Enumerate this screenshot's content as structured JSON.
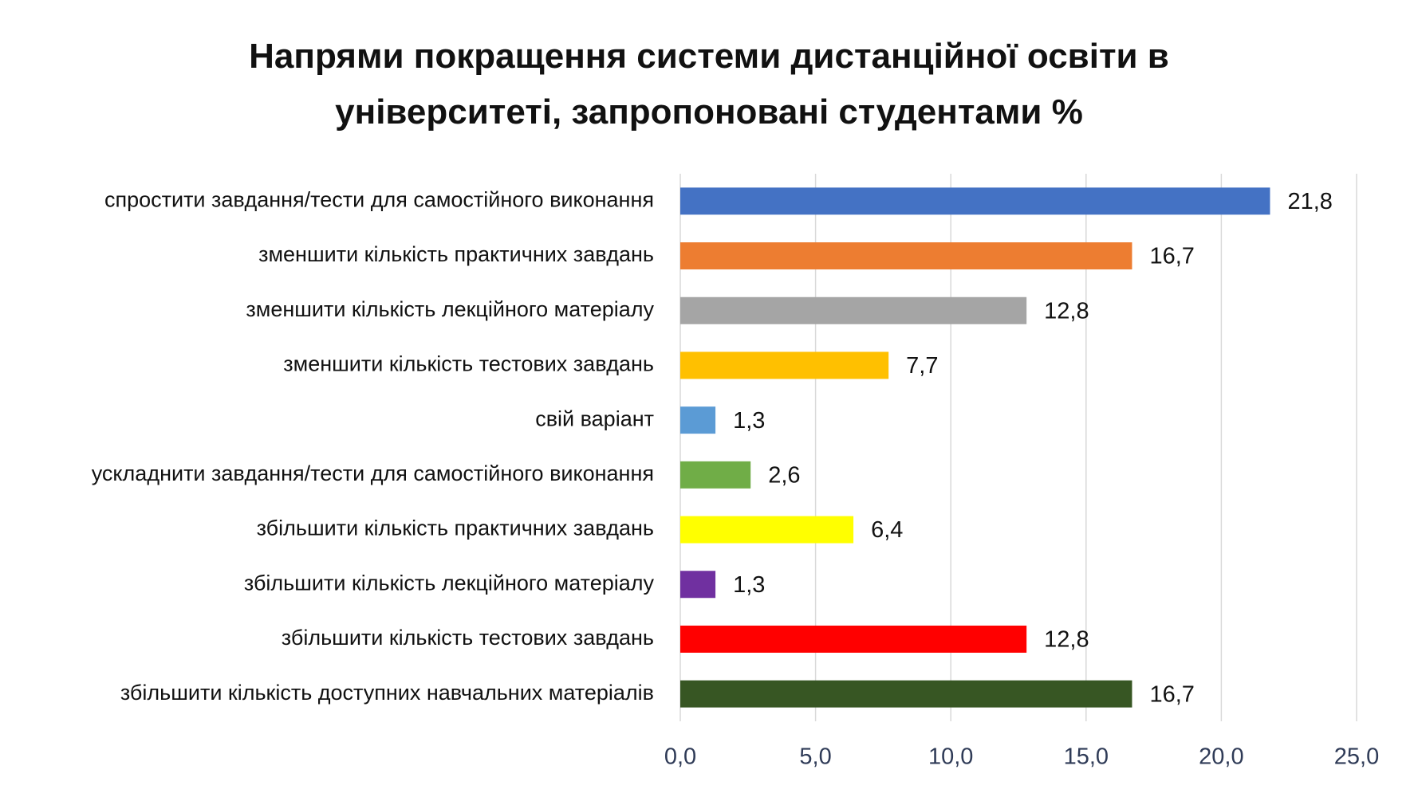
{
  "chart_data": {
    "type": "bar",
    "orientation": "horizontal",
    "title": "Напрями покращення системи дистанційної освіти в університеті, запропоновані студентами %",
    "categories": [
      "спростити завдання/тести для самостійного виконання",
      "зменшити кількість практичних завдань",
      "зменшити кількість лекційного матеріалу",
      "зменшити кількість тестових завдань",
      "свій варіант",
      "ускладнити завдання/тести для самостійного виконання",
      "збільшити кількість практичних завдань",
      "збільшити кількість лекційного матеріалу",
      "збільшити кількість тестових завдань",
      "збільшити кількість доступних навчальних матеріалів"
    ],
    "values": [
      21.8,
      16.7,
      12.8,
      7.7,
      1.3,
      2.6,
      6.4,
      1.3,
      12.8,
      16.7
    ],
    "value_labels": [
      "21,8",
      "16,7",
      "12,8",
      "7,7",
      "1,3",
      "2,6",
      "6,4",
      "1,3",
      "12,8",
      "16,7"
    ],
    "colors": [
      "#4472c4",
      "#ed7d31",
      "#a5a5a5",
      "#ffc000",
      "#5b9bd5",
      "#70ad47",
      "#ffff00",
      "#7030a0",
      "#ff0000",
      "#375623"
    ],
    "xlim": [
      0,
      25
    ],
    "xticks": [
      {
        "value": 0,
        "label": "0,0"
      },
      {
        "value": 5,
        "label": "5,0"
      },
      {
        "value": 10,
        "label": "10,0"
      },
      {
        "value": 15,
        "label": "15,0"
      },
      {
        "value": 20,
        "label": "20,0"
      },
      {
        "value": 25,
        "label": "25,0"
      }
    ],
    "grid": true
  }
}
